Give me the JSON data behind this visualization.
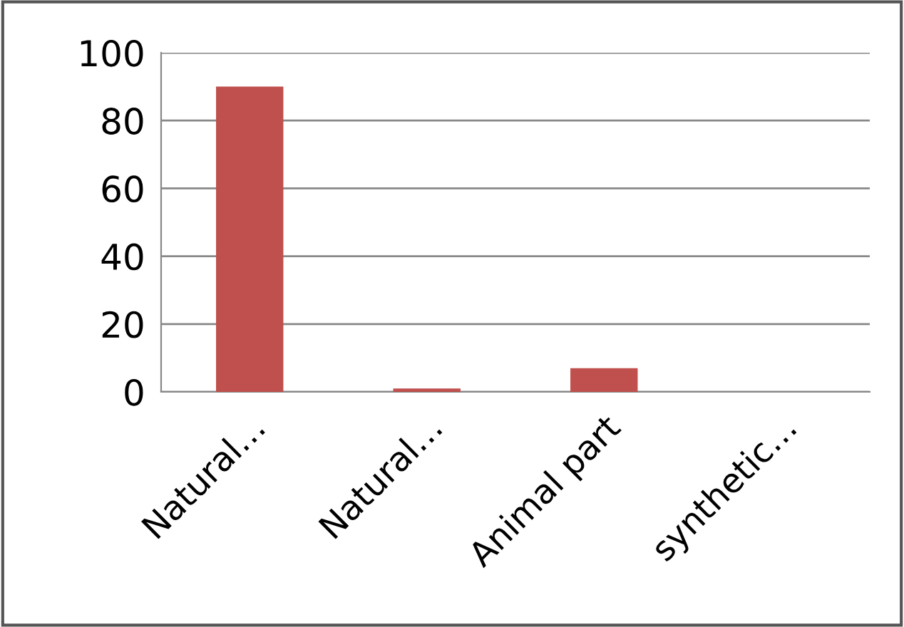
{
  "chart_data": {
    "type": "bar",
    "categories": [
      "Natural…",
      "Natural…",
      "Animal part",
      "synthetic…"
    ],
    "values": [
      90,
      1,
      7,
      0
    ],
    "color": "#c0504d",
    "ylim": [
      0,
      100
    ],
    "yticks": [
      0,
      20,
      40,
      60,
      80,
      100
    ],
    "grid": "y"
  }
}
